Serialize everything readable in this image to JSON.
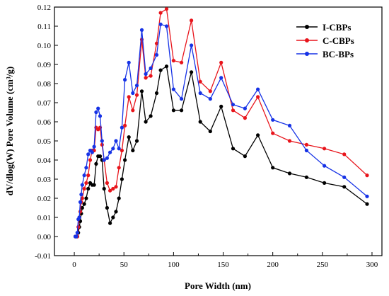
{
  "chart_data": {
    "type": "line",
    "xlabel": "Pore Width (nm)",
    "ylabel": "dV/dlog(W) Pore Volume (cm³/g)",
    "xlim": [
      -20,
      310
    ],
    "ylim": [
      -0.01,
      0.12
    ],
    "xticks": [
      0,
      50,
      100,
      150,
      200,
      250,
      300
    ],
    "yticks": [
      -0.01,
      0.0,
      0.01,
      0.02,
      0.03,
      0.04,
      0.05,
      0.06,
      0.07,
      0.08,
      0.09,
      0.1,
      0.11,
      0.12
    ],
    "xtick_labels": [
      "0",
      "50",
      "100",
      "150",
      "200",
      "250",
      "300"
    ],
    "ytick_labels": [
      "-0.01",
      "0.00",
      "0.01",
      "0.02",
      "0.03",
      "0.04",
      "0.05",
      "0.06",
      "0.07",
      "0.08",
      "0.09",
      "0.10",
      "0.11",
      "0.12"
    ],
    "grid": false,
    "legend_position": "top-right",
    "series": [
      {
        "name": "I-CBPs",
        "color": "#000000",
        "points": [
          [
            1,
            0
          ],
          [
            2,
            0
          ],
          [
            3,
            0
          ],
          [
            4,
            0.002
          ],
          [
            5,
            0.005
          ],
          [
            6,
            0.008
          ],
          [
            7,
            0.012
          ],
          [
            8,
            0.015
          ],
          [
            10,
            0.017
          ],
          [
            12,
            0.02
          ],
          [
            14,
            0.025
          ],
          [
            16,
            0.028
          ],
          [
            18,
            0.027
          ],
          [
            20,
            0.027
          ],
          [
            22,
            0.038
          ],
          [
            24,
            0.042
          ],
          [
            26,
            0.042
          ],
          [
            28,
            0.04
          ],
          [
            30,
            0.025
          ],
          [
            33,
            0.015
          ],
          [
            36,
            0.007
          ],
          [
            39,
            0.01
          ],
          [
            42,
            0.013
          ],
          [
            45,
            0.02
          ],
          [
            48,
            0.03
          ],
          [
            51,
            0.04
          ],
          [
            55,
            0.052
          ],
          [
            59,
            0.045
          ],
          [
            63,
            0.05
          ],
          [
            68,
            0.076
          ],
          [
            72,
            0.06
          ],
          [
            77,
            0.063
          ],
          [
            83,
            0.075
          ],
          [
            87,
            0.087
          ],
          [
            93,
            0.089
          ],
          [
            100,
            0.066
          ],
          [
            108,
            0.066
          ],
          [
            118,
            0.086
          ],
          [
            127,
            0.06
          ],
          [
            137,
            0.055
          ],
          [
            148,
            0.068
          ],
          [
            160,
            0.046
          ],
          [
            172,
            0.042
          ],
          [
            185,
            0.053
          ],
          [
            200,
            0.036
          ],
          [
            217,
            0.033
          ],
          [
            234,
            0.031
          ],
          [
            252,
            0.028
          ],
          [
            272,
            0.026
          ],
          [
            295,
            0.017
          ]
        ]
      },
      {
        "name": "C-CBPs",
        "color": "#e8141b",
        "points": [
          [
            1,
            0
          ],
          [
            2,
            0
          ],
          [
            3,
            0
          ],
          [
            4,
            0.005
          ],
          [
            5,
            0.01
          ],
          [
            6,
            0.013
          ],
          [
            7,
            0.018
          ],
          [
            8,
            0.02
          ],
          [
            10,
            0.025
          ],
          [
            12,
            0.028
          ],
          [
            14,
            0.032
          ],
          [
            16,
            0.04
          ],
          [
            18,
            0.045
          ],
          [
            20,
            0.045
          ],
          [
            22,
            0.057
          ],
          [
            24,
            0.056
          ],
          [
            26,
            0.057
          ],
          [
            28,
            0.048
          ],
          [
            30,
            0.04
          ],
          [
            33,
            0.028
          ],
          [
            36,
            0.024
          ],
          [
            39,
            0.025
          ],
          [
            42,
            0.026
          ],
          [
            45,
            0.036
          ],
          [
            48,
            0.045
          ],
          [
            51,
            0.058
          ],
          [
            55,
            0.073
          ],
          [
            59,
            0.066
          ],
          [
            63,
            0.074
          ],
          [
            68,
            0.103
          ],
          [
            72,
            0.083
          ],
          [
            77,
            0.084
          ],
          [
            83,
            0.101
          ],
          [
            87,
            0.117
          ],
          [
            93,
            0.119
          ],
          [
            100,
            0.092
          ],
          [
            108,
            0.091
          ],
          [
            118,
            0.113
          ],
          [
            127,
            0.081
          ],
          [
            137,
            0.076
          ],
          [
            148,
            0.091
          ],
          [
            160,
            0.066
          ],
          [
            172,
            0.062
          ],
          [
            185,
            0.073
          ],
          [
            200,
            0.054
          ],
          [
            217,
            0.05
          ],
          [
            234,
            0.048
          ],
          [
            252,
            0.046
          ],
          [
            272,
            0.043
          ],
          [
            295,
            0.032
          ]
        ]
      },
      {
        "name": "BC-BPs",
        "color": "#1632e6",
        "points": [
          [
            1,
            0
          ],
          [
            2,
            0
          ],
          [
            3,
            0.002
          ],
          [
            4,
            0.009
          ],
          [
            5,
            0.01
          ],
          [
            6,
            0.018
          ],
          [
            7,
            0.022
          ],
          [
            8,
            0.027
          ],
          [
            10,
            0.032
          ],
          [
            12,
            0.036
          ],
          [
            14,
            0.043
          ],
          [
            16,
            0.045
          ],
          [
            18,
            0.044
          ],
          [
            20,
            0.047
          ],
          [
            22,
            0.065
          ],
          [
            24,
            0.067
          ],
          [
            26,
            0.063
          ],
          [
            28,
            0.05
          ],
          [
            30,
            0.04
          ],
          [
            33,
            0.041
          ],
          [
            36,
            0.044
          ],
          [
            39,
            0.046
          ],
          [
            42,
            0.05
          ],
          [
            45,
            0.046
          ],
          [
            48,
            0.057
          ],
          [
            51,
            0.082
          ],
          [
            55,
            0.091
          ],
          [
            59,
            0.075
          ],
          [
            63,
            0.079
          ],
          [
            68,
            0.108
          ],
          [
            72,
            0.085
          ],
          [
            77,
            0.088
          ],
          [
            83,
            0.095
          ],
          [
            87,
            0.111
          ],
          [
            93,
            0.11
          ],
          [
            100,
            0.077
          ],
          [
            108,
            0.072
          ],
          [
            118,
            0.1
          ],
          [
            127,
            0.075
          ],
          [
            137,
            0.072
          ],
          [
            148,
            0.083
          ],
          [
            160,
            0.069
          ],
          [
            172,
            0.067
          ],
          [
            185,
            0.077
          ],
          [
            200,
            0.061
          ],
          [
            217,
            0.058
          ],
          [
            234,
            0.045
          ],
          [
            252,
            0.037
          ],
          [
            272,
            0.031
          ],
          [
            295,
            0.021
          ]
        ]
      }
    ]
  }
}
